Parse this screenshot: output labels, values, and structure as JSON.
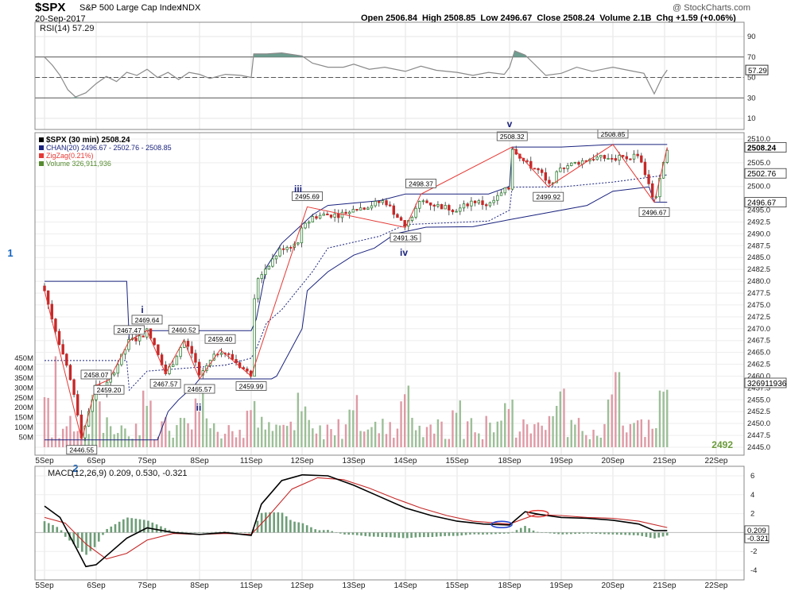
{
  "header": {
    "ticker": "$SPX",
    "name": "S&P 500 Large Cap Index",
    "exchange": "INDX",
    "date": "20-Sep-2017",
    "ohlc": "Open 2506.84  High 2508.85  Low 2496.67  Close 2508.24  Volume 2.1B  Chg +1.59 (+0.06%)",
    "watermark": "@ StockCharts.com"
  },
  "rsi_panel": {
    "label": "RSI(14) 57.29",
    "current": "57.29",
    "ticks": [
      "90",
      "70",
      "50",
      "30",
      "10"
    ]
  },
  "price_panel": {
    "legend": [
      {
        "name": "$SPX (30 min) 2508.24",
        "color": "#000000"
      },
      {
        "name": "CHAN(20) 2496.67 - 2502.76 - 2508.85",
        "color": "#1a237e"
      },
      {
        "name": "ZigZag(0.21%)",
        "color": "#e53935"
      },
      {
        "name": "Volume 326,911,936",
        "color": "#558b2f"
      }
    ],
    "price_ticks": [
      "2510.0",
      "2505.0",
      "2500.0",
      "2495.0",
      "2492.5",
      "2490.0",
      "2487.5",
      "2485.0",
      "2482.5",
      "2480.0",
      "2477.5",
      "2475.0",
      "2472.5",
      "2470.0",
      "2467.5",
      "2465.0",
      "2462.5",
      "2460.0",
      "2457.5",
      "2455.0",
      "2452.5",
      "2450.0",
      "2447.5",
      "2445.0"
    ],
    "volume_ticks": [
      "450M",
      "400M",
      "350M",
      "300M",
      "250M",
      "200M",
      "150M",
      "100M",
      "50M"
    ],
    "price_tags": [
      {
        "text": "2508.24",
        "bold": true
      },
      {
        "text": "2502.76",
        "bold": false
      },
      {
        "text": "2496.67",
        "bold": false
      },
      {
        "text": "326911936",
        "bold": false
      }
    ],
    "wave_labels": [
      "1",
      "2",
      "i",
      "ii",
      "iii",
      "iv",
      "v"
    ],
    "callouts": [
      "2446.55",
      "2458.07",
      "2459.20",
      "2467.47",
      "2469.64",
      "2467.57",
      "2460.52",
      "2465.57",
      "2459.40",
      "2459.99",
      "2495.69",
      "2491.35",
      "2498.37",
      "2508.32",
      "2499.92",
      "2508.85",
      "2496.67"
    ],
    "corner_price": "2492",
    "dates": [
      "5Sep",
      "6Sep",
      "7Sep",
      "8Sep",
      "11Sep",
      "12Sep",
      "13Sep",
      "14Sep",
      "15Sep",
      "18Sep",
      "19Sep",
      "20Sep",
      "21Sep",
      "22Sep"
    ]
  },
  "macd_panel": {
    "label_a": "MACD",
    "label_b": "(12,26,9) 0.209, 0.530, -0.321",
    "ticks": [
      "6",
      "4",
      "2",
      "0",
      "-2",
      "-4"
    ],
    "tags": [
      "0.209",
      "-0.321"
    ]
  },
  "colors": {
    "up": "#2e7d32",
    "down": "#c62828",
    "rsi_fill": "#6e9e90",
    "channel": "#1a237e",
    "zigzag": "#e53935",
    "vol_up": "#9cbf97",
    "vol_down": "#df9aa5"
  },
  "chart_data": {
    "type": "line",
    "title": "$SPX S&P 500 Large Cap Index",
    "series": [
      {
        "name": "$SPX (30 min) 2508.24",
        "pivots": [
          {
            "date": "5Sep",
            "price": 2478.0
          },
          {
            "date": "6Sep",
            "price": 2446.55
          },
          {
            "date": "6Sep",
            "price": 2458.07
          },
          {
            "date": "6Sep",
            "price": 2459.2
          },
          {
            "date": "7Sep",
            "price": 2467.47
          },
          {
            "date": "7Sep",
            "price": 2469.64
          },
          {
            "date": "7Sep",
            "price": 2460.52
          },
          {
            "date": "7Sep",
            "price": 2467.57
          },
          {
            "date": "8Sep",
            "price": 2459.4
          },
          {
            "date": "8Sep",
            "price": 2465.57
          },
          {
            "date": "11Sep",
            "price": 2459.99
          },
          {
            "date": "12Sep",
            "price": 2495.69
          },
          {
            "date": "14Sep",
            "price": 2491.35
          },
          {
            "date": "14Sep",
            "price": 2498.37
          },
          {
            "date": "18Sep",
            "price": 2508.32
          },
          {
            "date": "19Sep",
            "price": 2499.92
          },
          {
            "date": "20Sep",
            "price": 2508.85
          },
          {
            "date": "20Sep",
            "price": 2496.67
          },
          {
            "date": "20Sep",
            "price": 2508.24
          }
        ]
      },
      {
        "name": "ZigZag(0.21%)",
        "values_note": "connects pivots"
      },
      {
        "name": "CHAN(20)",
        "upper": 2508.85,
        "middle": 2502.76,
        "lower": 2496.67
      },
      {
        "name": "RSI(14)",
        "last": 57.29
      },
      {
        "name": "MACD(12,26,9)",
        "macd": 0.209,
        "signal": 0.53,
        "histogram": -0.321
      }
    ],
    "ylim_price": [
      2445.0,
      2512.0
    ],
    "ylim_rsi": [
      0,
      100
    ],
    "ylim_macd": [
      -4.5,
      7
    ],
    "grid": true,
    "legend": "top-left"
  }
}
